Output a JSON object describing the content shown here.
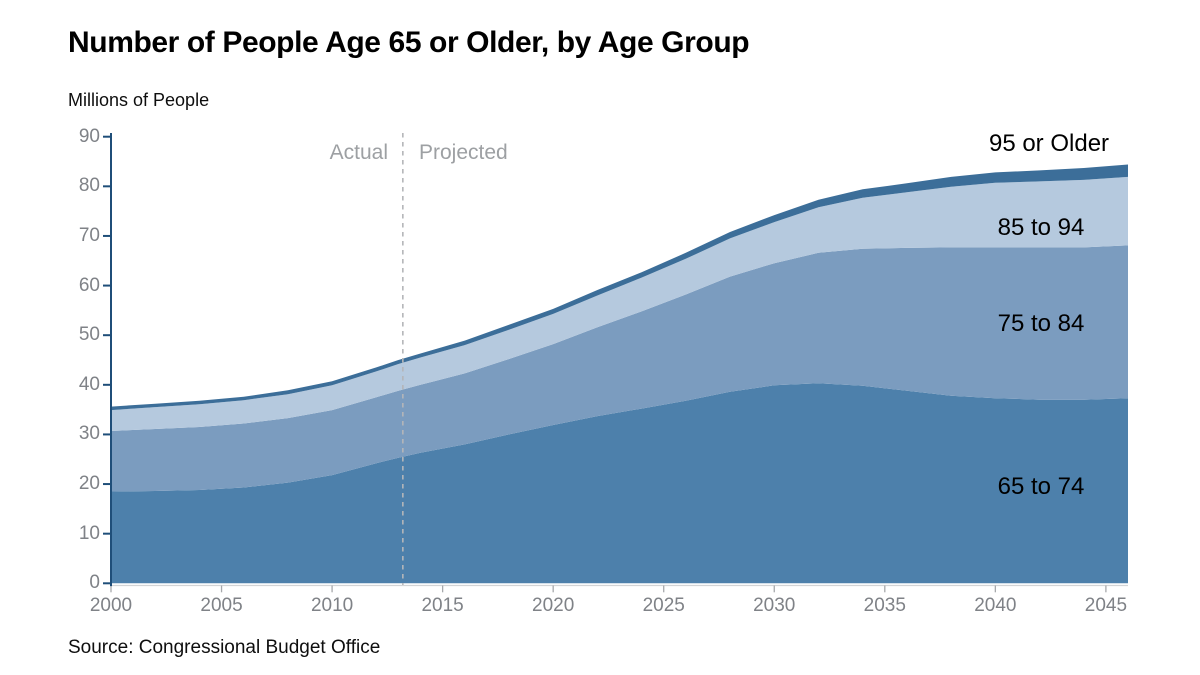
{
  "title": "Number of People Age 65 or Older, by Age Group",
  "subtitle": "Millions of People",
  "source": "Source: Congressional Budget Office",
  "colors": {
    "axis_y": "#1f4e79",
    "axis_x_line": "#d2d4d6",
    "axis_x_tick": "#a7a9ac",
    "divider_line": "#b4b6b9",
    "tick_text": "#7f8287",
    "annotation_text": "#9da0a3",
    "band_65_74": "#4d80ab",
    "band_75_84": "#7b9cbf",
    "band_85_94": "#b5c9de",
    "band_95_plus": "#3c6e99"
  },
  "chart_data": {
    "type": "area",
    "stacked": true,
    "title": "Number of People Age 65 or Older, by Age Group",
    "xlabel": "",
    "ylabel": "Millions of People",
    "xlim": [
      2000,
      2046
    ],
    "ylim": [
      0,
      90
    ],
    "grid": false,
    "legend_position": "labels-on-chart",
    "x_ticks": [
      2000,
      2005,
      2010,
      2015,
      2020,
      2025,
      2030,
      2035,
      2040,
      2045
    ],
    "y_ticks": [
      0,
      10,
      20,
      30,
      40,
      50,
      60,
      70,
      80,
      90
    ],
    "x": [
      2000,
      2002,
      2004,
      2006,
      2008,
      2010,
      2012,
      2013,
      2014,
      2016,
      2018,
      2020,
      2022,
      2024,
      2026,
      2028,
      2030,
      2032,
      2034,
      2036,
      2038,
      2040,
      2042,
      2044,
      2046
    ],
    "series": [
      {
        "name": "65 to 74",
        "color": "#4d80ab",
        "values": [
          18.5,
          18.6,
          18.8,
          19.3,
          20.3,
          21.8,
          24.2,
          25.3,
          26.3,
          28.0,
          30.0,
          31.9,
          33.7,
          35.2,
          36.8,
          38.6,
          39.9,
          40.3,
          39.8,
          38.8,
          37.8,
          37.3,
          37.0,
          37.0,
          37.3
        ]
      },
      {
        "name": "75 to 84",
        "color": "#7b9cbf",
        "values": [
          12.2,
          12.5,
          12.7,
          12.9,
          13.0,
          13.1,
          13.3,
          13.5,
          13.7,
          14.3,
          15.2,
          16.3,
          17.9,
          19.6,
          21.4,
          23.2,
          24.6,
          26.3,
          27.6,
          28.8,
          29.9,
          30.4,
          30.7,
          30.7,
          30.8
        ]
      },
      {
        "name": "85 to 94",
        "color": "#b5c9de",
        "values": [
          4.2,
          4.4,
          4.6,
          4.7,
          4.8,
          5.0,
          5.2,
          5.4,
          5.5,
          5.7,
          5.9,
          6.1,
          6.4,
          6.8,
          7.2,
          7.7,
          8.3,
          9.2,
          10.3,
          11.2,
          12.2,
          13.0,
          13.3,
          13.6,
          13.8
        ]
      },
      {
        "name": "95 or Older",
        "color": "#3c6e99",
        "values": [
          0.7,
          0.7,
          0.7,
          0.7,
          0.8,
          0.8,
          0.8,
          0.8,
          0.8,
          0.9,
          1.0,
          1.0,
          1.1,
          1.1,
          1.2,
          1.3,
          1.4,
          1.5,
          1.7,
          1.8,
          2.0,
          2.1,
          2.2,
          2.4,
          2.5
        ]
      }
    ],
    "divider": {
      "x": 2013.2,
      "label_left": "Actual",
      "label_right": "Projected"
    }
  }
}
